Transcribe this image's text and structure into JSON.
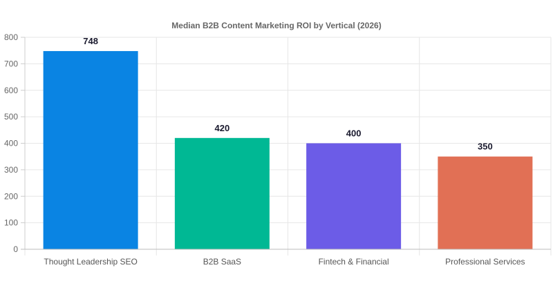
{
  "chart_data": {
    "type": "bar",
    "title": "Median B2B Content Marketing ROI by Vertical (2026)",
    "categories": [
      "Thought Leadership SEO",
      "B2B SaaS",
      "Fintech & Financial",
      "Professional Services"
    ],
    "values": [
      748,
      420,
      400,
      350
    ],
    "colors": [
      "#0a84e3",
      "#00b894",
      "#6c5ce7",
      "#e17055"
    ],
    "data_labels": [
      "748",
      "420",
      "400",
      "350"
    ],
    "y_ticks": [
      "0",
      "100",
      "200",
      "300",
      "400",
      "500",
      "600",
      "700",
      "800"
    ],
    "ylim": [
      0,
      800
    ],
    "xlabel": "",
    "ylabel": "",
    "grid": true,
    "legend": "none"
  }
}
